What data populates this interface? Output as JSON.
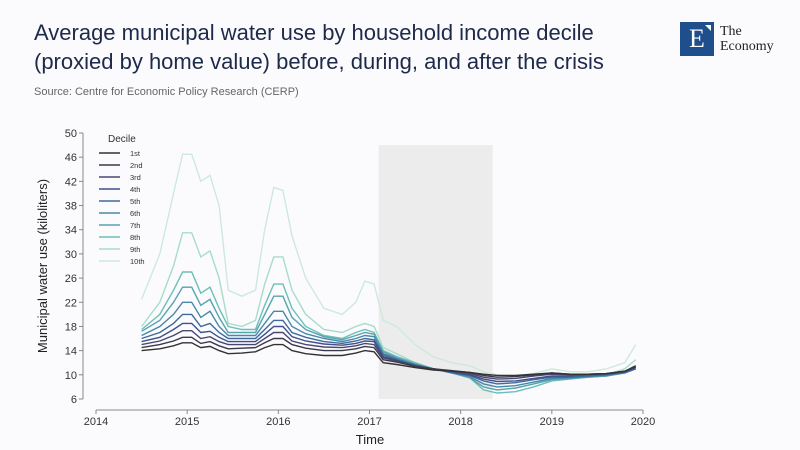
{
  "header": {
    "title": "Average municipal water use by household income decile (proxied by home value) before, during, and after the crisis",
    "source": "Source: Centre for Economic Policy Research (CERP)"
  },
  "logo": {
    "mark": "E",
    "line1": "The",
    "line2": "Economy",
    "color": "#1f4e8c"
  },
  "chart_data": {
    "type": "line",
    "xlabel": "Time",
    "ylabel": "Municipal water use (kiloliters)",
    "xlim": [
      2014,
      2020
    ],
    "ylim": [
      6,
      50
    ],
    "xticks": [
      2014,
      2015,
      2016,
      2017,
      2018,
      2019,
      2020
    ],
    "yticks": [
      6,
      10,
      14,
      18,
      22,
      26,
      30,
      34,
      38,
      42,
      46,
      50
    ],
    "legend_title": "Decile",
    "legend_placement": "top-left",
    "grid": false,
    "shaded_period": [
      2017.1,
      2018.35
    ],
    "x": [
      2014.5,
      2014.7,
      2014.85,
      2014.95,
      2015.05,
      2015.15,
      2015.25,
      2015.35,
      2015.45,
      2015.6,
      2015.75,
      2015.85,
      2015.95,
      2016.05,
      2016.15,
      2016.3,
      2016.5,
      2016.7,
      2016.85,
      2016.95,
      2017.05,
      2017.15,
      2017.3,
      2017.5,
      2017.7,
      2017.9,
      2018.1,
      2018.25,
      2018.4,
      2018.6,
      2018.8,
      2019.0,
      2019.2,
      2019.4,
      2019.6,
      2019.8,
      2019.92
    ],
    "series": [
      {
        "name": "1st",
        "color": "#333333",
        "values": [
          14,
          14.3,
          14.8,
          15.3,
          15.3,
          14.5,
          14.7,
          14,
          13.5,
          13.6,
          13.8,
          14.5,
          15,
          15,
          14,
          13.5,
          13.2,
          13.2,
          13.6,
          14,
          13.8,
          12,
          11.7,
          11.2,
          10.8,
          10.6,
          10.4,
          10.1,
          9.9,
          9.9,
          10.1,
          10.3,
          10.1,
          10.1,
          10.2,
          10.6,
          11.5
        ]
      },
      {
        "name": "2nd",
        "color": "#3a3a4a",
        "values": [
          14.5,
          15,
          15.6,
          16.2,
          16.2,
          15.2,
          15.5,
          14.8,
          14.3,
          14.4,
          14.5,
          15.3,
          16,
          16,
          15,
          14.4,
          14,
          14,
          14.3,
          14.7,
          14.5,
          12.5,
          12.1,
          11.4,
          11,
          10.7,
          10.4,
          9.9,
          9.6,
          9.7,
          10,
          10.3,
          10.1,
          10.1,
          10.2,
          10.6,
          11.3
        ]
      },
      {
        "name": "3rd",
        "color": "#4b4870",
        "values": [
          15,
          15.6,
          16.5,
          17.3,
          17.3,
          16,
          16.3,
          15.5,
          15,
          15,
          15,
          16,
          17,
          17,
          15.6,
          15,
          14.6,
          14.5,
          14.8,
          15.2,
          15,
          12.8,
          12.3,
          11.5,
          11,
          10.6,
          10.2,
          9.6,
          9.3,
          9.4,
          9.8,
          10.1,
          10,
          10.1,
          10.2,
          10.6,
          11.3
        ]
      },
      {
        "name": "4th",
        "color": "#3e4f8f",
        "values": [
          15.5,
          16.2,
          17.5,
          18.5,
          18.5,
          17,
          17.2,
          16.2,
          15.5,
          15.5,
          15.5,
          16.7,
          18,
          18,
          16.3,
          15.6,
          15.1,
          14.9,
          15.2,
          15.6,
          15.5,
          13,
          12.4,
          11.5,
          11,
          10.5,
          10,
          9.3,
          8.9,
          9,
          9.4,
          9.8,
          9.8,
          10,
          10.1,
          10.5,
          11.2
        ]
      },
      {
        "name": "5th",
        "color": "#3e6a9a",
        "values": [
          16,
          17,
          18.5,
          20,
          20,
          18,
          18.5,
          17,
          16,
          16,
          16,
          17.5,
          19,
          19,
          17,
          16.2,
          15.5,
          15.2,
          15.6,
          16,
          15.8,
          13.3,
          12.5,
          11.6,
          11,
          10.4,
          9.9,
          9,
          8.5,
          8.7,
          9.2,
          9.6,
          9.6,
          9.8,
          10,
          10.4,
          11
        ]
      },
      {
        "name": "6th",
        "color": "#4a88a8",
        "values": [
          16.5,
          18,
          20,
          22,
          22,
          19.5,
          20.5,
          18,
          16.5,
          16.5,
          16.5,
          18.5,
          20.5,
          20.5,
          18,
          16.8,
          16,
          15.5,
          16,
          16.5,
          16.3,
          13.5,
          12.7,
          11.7,
          11,
          10.3,
          9.7,
          8.5,
          8,
          8.2,
          8.8,
          9.4,
          9.5,
          9.7,
          9.9,
          10.3,
          11
        ]
      },
      {
        "name": "7th",
        "color": "#57a3b0",
        "values": [
          17.2,
          19,
          22,
          24.5,
          24.5,
          21.5,
          22.5,
          19.5,
          17,
          17,
          17,
          20,
          23,
          23,
          19.5,
          17.5,
          16.3,
          15.8,
          16.5,
          17,
          16.7,
          13.8,
          12.8,
          11.8,
          11,
          10.3,
          9.5,
          8,
          7.5,
          7.8,
          8.5,
          9.2,
          9.4,
          9.6,
          9.8,
          10.3,
          11
        ]
      },
      {
        "name": "8th",
        "color": "#6dbfb5",
        "values": [
          17.5,
          20,
          24,
          27,
          27,
          23.5,
          24.5,
          21,
          18,
          17.5,
          17.5,
          21.5,
          25,
          25,
          21,
          18,
          16.5,
          16,
          17,
          17.5,
          17,
          14,
          13,
          12,
          11,
          10.5,
          9.5,
          7.5,
          7,
          7.2,
          8,
          9,
          9.3,
          9.6,
          9.8,
          10.5,
          11.5
        ]
      },
      {
        "name": "9th",
        "color": "#a8dcc8",
        "values": [
          18,
          22,
          28,
          33.5,
          33.5,
          29.5,
          30.5,
          26,
          18.5,
          18,
          19,
          25,
          29.5,
          29.5,
          24,
          20,
          17.5,
          17,
          18,
          18.5,
          18,
          14.5,
          13.5,
          12,
          11,
          10.5,
          9.5,
          8,
          7.5,
          7.8,
          8.5,
          9.5,
          9.5,
          10,
          10,
          11,
          12.5
        ]
      },
      {
        "name": "10th",
        "color": "#cde9dc",
        "values": [
          22.5,
          30,
          40,
          46.5,
          46.5,
          42,
          43,
          38,
          24,
          23,
          24,
          34,
          41,
          40.5,
          33,
          26,
          21,
          20,
          22,
          25.5,
          25,
          19,
          18,
          15,
          13,
          12,
          11.5,
          10.5,
          10,
          9.8,
          10.2,
          11,
          10.5,
          10.5,
          11,
          12,
          15
        ]
      }
    ]
  }
}
